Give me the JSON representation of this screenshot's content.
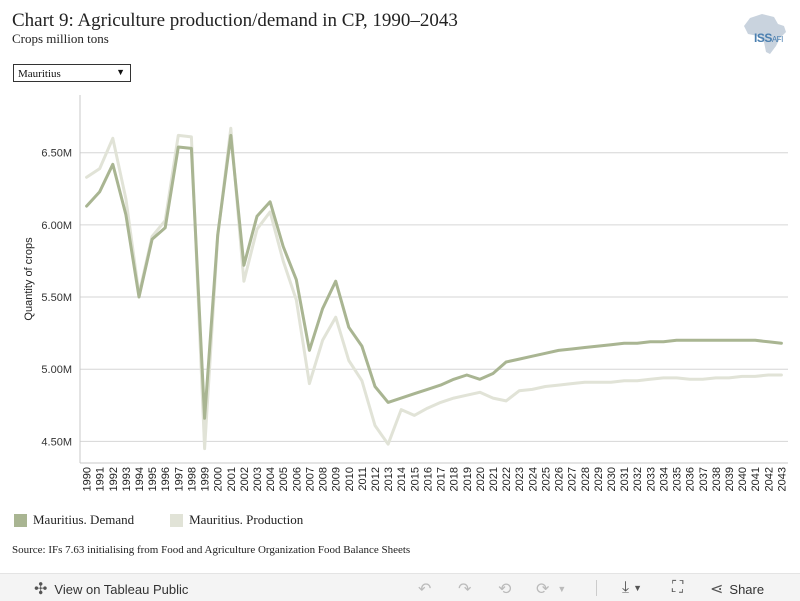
{
  "header": {
    "title": "Chart 9: Agriculture production/demand in CP, 1990–2043",
    "subtitle": "Crops million tons",
    "logo_text": "ISS",
    "logo_small": "AFI"
  },
  "filter": {
    "selected": "Mauritius"
  },
  "chart_data": {
    "type": "line",
    "xlabel": "",
    "ylabel": "Quantity of crops",
    "ylim": [
      4.35,
      6.9
    ],
    "yticks": [
      4.5,
      5.0,
      5.5,
      6.0,
      6.5
    ],
    "ytick_labels": [
      "4.50M",
      "5.00M",
      "5.50M",
      "6.00M",
      "6.50M"
    ],
    "grid": true,
    "legend_position": "bottom-left",
    "x": [
      "1990",
      "1991",
      "1992",
      "1993",
      "1994",
      "1995",
      "1996",
      "1997",
      "1998",
      "1999",
      "2000",
      "2001",
      "2002",
      "2003",
      "2004",
      "2005",
      "2006",
      "2007",
      "2008",
      "2009",
      "2010",
      "2011",
      "2012",
      "2013",
      "2014",
      "2015",
      "2016",
      "2017",
      "2018",
      "2019",
      "2020",
      "2021",
      "2022",
      "2023",
      "2024",
      "2025",
      "2026",
      "2027",
      "2028",
      "2029",
      "2030",
      "2031",
      "2032",
      "2033",
      "2034",
      "2035",
      "2036",
      "2037",
      "2038",
      "2039",
      "2040",
      "2041",
      "2042",
      "2043"
    ],
    "series": [
      {
        "name": "Mauritius. Demand",
        "color": "#a9b592",
        "values": [
          6.13,
          6.23,
          6.42,
          6.07,
          5.5,
          5.9,
          5.98,
          6.54,
          6.53,
          4.66,
          5.93,
          6.62,
          5.72,
          6.06,
          6.16,
          5.85,
          5.62,
          5.13,
          5.42,
          5.61,
          5.29,
          5.16,
          4.88,
          4.77,
          4.8,
          4.83,
          4.86,
          4.89,
          4.93,
          4.96,
          4.93,
          4.97,
          5.05,
          5.07,
          5.09,
          5.11,
          5.13,
          5.14,
          5.15,
          5.16,
          5.17,
          5.18,
          5.18,
          5.19,
          5.19,
          5.2,
          5.2,
          5.2,
          5.2,
          5.2,
          5.2,
          5.2,
          5.19,
          5.18
        ]
      },
      {
        "name": "Mauritius. Production",
        "color": "#e1e3d7",
        "values": [
          6.33,
          6.39,
          6.6,
          6.18,
          5.52,
          5.92,
          6.03,
          6.62,
          6.61,
          4.45,
          5.92,
          6.67,
          5.61,
          5.97,
          6.09,
          5.75,
          5.48,
          4.9,
          5.2,
          5.36,
          5.06,
          4.92,
          4.61,
          4.48,
          4.72,
          4.68,
          4.73,
          4.77,
          4.8,
          4.82,
          4.84,
          4.8,
          4.78,
          4.85,
          4.86,
          4.88,
          4.89,
          4.9,
          4.91,
          4.91,
          4.91,
          4.92,
          4.92,
          4.93,
          4.94,
          4.94,
          4.93,
          4.93,
          4.94,
          4.94,
          4.95,
          4.95,
          4.96,
          4.96
        ]
      }
    ]
  },
  "source": "Source: IFs 7.63 initialising from Food and Agriculture Organization Food Balance Sheets",
  "toolbar": {
    "view_label": "View on Tableau Public",
    "share_label": "Share"
  }
}
